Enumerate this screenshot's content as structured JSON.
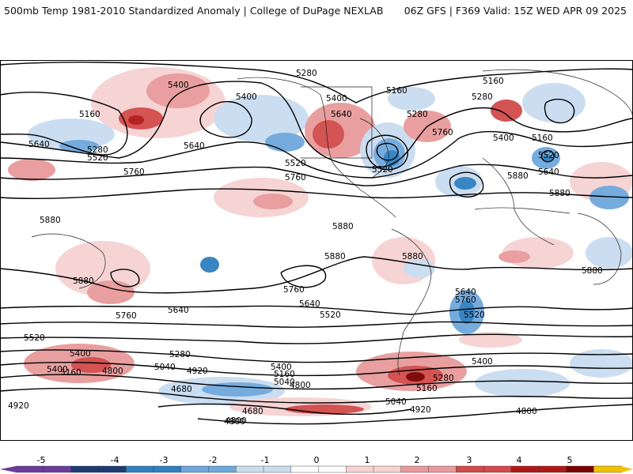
{
  "header": {
    "left": "500mb Temp 1981-2010 Standardized Anomaly | College of DuPage NEXLAB",
    "right": "06Z GFS | F369 Valid: 15Z WED APR 09 2025"
  },
  "colors": {
    "-5": "#6a3d9a",
    "-4": "#1f3b73",
    "-3": "#2f7fc1",
    "-2": "#6fa8dc",
    "-1": "#c9dcf0",
    "0": "#ffffff",
    "1": "#f6d2d2",
    "2": "#e89a9a",
    "3": "#d24a4a",
    "4": "#b01818",
    "5": "#7a0000",
    "over": "#f2c200"
  },
  "colorbar": {
    "ticks": [
      "-5",
      "-4",
      "-3",
      "-2",
      "-1",
      "0",
      "1",
      "2",
      "3",
      "4",
      "5"
    ]
  },
  "contour_labels": [
    "5280",
    "5160",
    "5400",
    "5400",
    "5400",
    "5160",
    "5280",
    "5160",
    "5640",
    "5280",
    "5760",
    "5640",
    "5400",
    "5160",
    "5280",
    "5520",
    "5640",
    "5520",
    "5760",
    "5520",
    "5520",
    "5640",
    "5760",
    "5880",
    "5880",
    "5880",
    "5880",
    "5880",
    "5880",
    "5880",
    "5880",
    "5760",
    "5640",
    "5640",
    "5760",
    "5640",
    "5520",
    "5760",
    "5520",
    "5400",
    "5520",
    "5400",
    "5280",
    "5040",
    "4920",
    "5160",
    "4800",
    "5400",
    "5160",
    "5040",
    "4800",
    "4680",
    "4680",
    "4800",
    "4800",
    "4920",
    "5280",
    "5160",
    "5040",
    "4920",
    "5400",
    "4800"
  ]
}
